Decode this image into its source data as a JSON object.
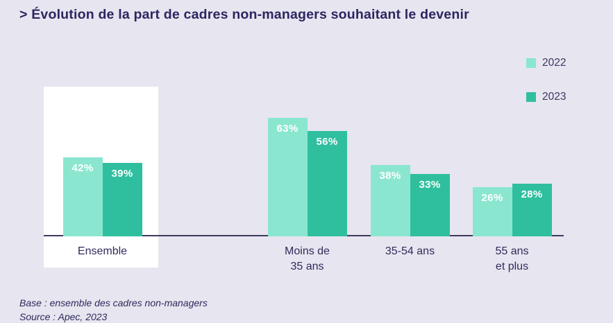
{
  "header": {
    "title": "> Évolution de la part de cadres non-managers souhaitant le devenir"
  },
  "legend": [
    {
      "label": "2022",
      "color": "#8BE6D0"
    },
    {
      "label": "2023",
      "color": "#2FBF9F"
    }
  ],
  "chart_data": {
    "type": "bar",
    "categories": [
      "Ensemble",
      "Moins de 35 ans",
      "35-54 ans",
      "55 ans et plus"
    ],
    "tick_labels": [
      "Ensemble",
      "Moins de\n35 ans",
      "35-54 ans",
      "55 ans\net plus"
    ],
    "series": [
      {
        "name": "2022",
        "color": "#8BE6D0",
        "values": [
          42,
          63,
          38,
          26
        ]
      },
      {
        "name": "2023",
        "color": "#2FBF9F",
        "values": [
          39,
          56,
          33,
          28
        ]
      }
    ],
    "value_suffix": "%",
    "ylim": [
      0,
      80
    ],
    "grid": false,
    "legend_position": "top-right",
    "highlighted_category": "Ensemble",
    "highlight_color": "#FFFFFF"
  },
  "footer": {
    "line1": "Base : ensemble des cadres non-managers",
    "line2": "Source : Apec, 2023"
  }
}
